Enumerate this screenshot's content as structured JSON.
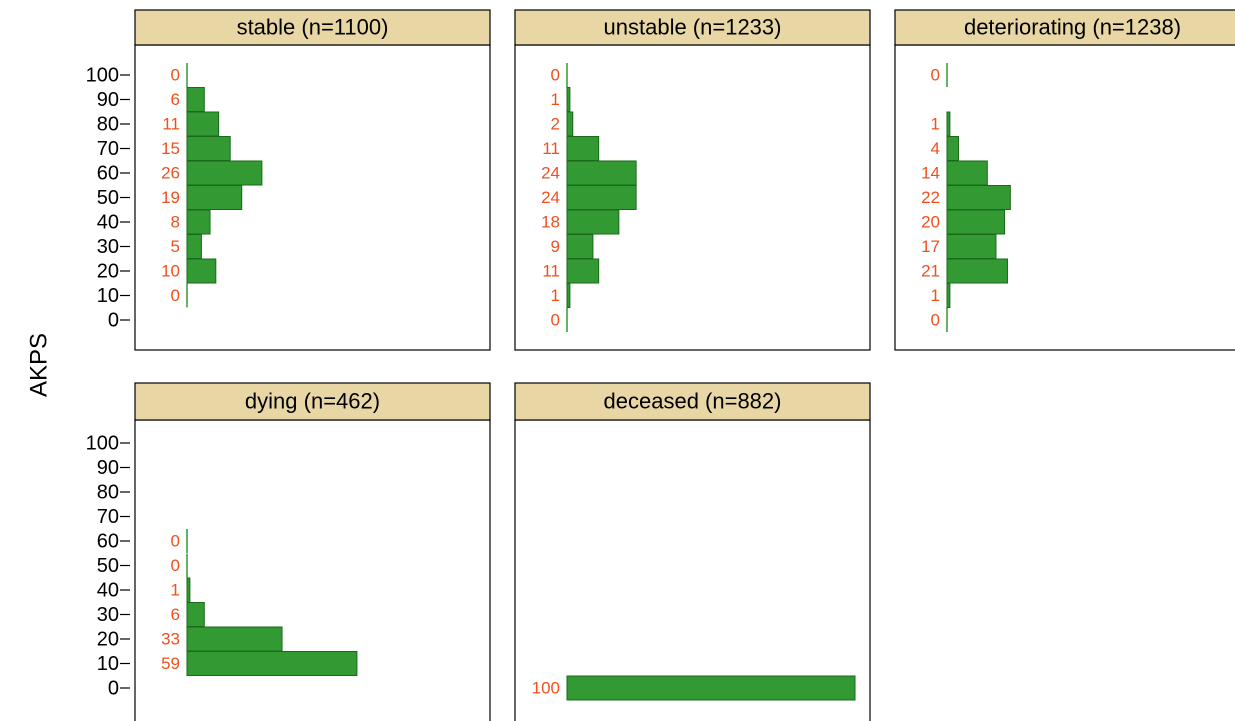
{
  "ylabel": "AKPS",
  "chart_data": [
    {
      "type": "hbar",
      "title": "stable (n=1100)",
      "color": "#339933",
      "label_color": "#f0501e",
      "categories": [
        100,
        90,
        80,
        70,
        60,
        50,
        40,
        30,
        20,
        10
      ],
      "values": [
        0,
        6,
        11,
        15,
        26,
        19,
        8,
        5,
        10,
        0
      ],
      "xlim": [
        0,
        100
      ],
      "ylim": [
        0,
        100
      ],
      "yticks": [
        0,
        10,
        20,
        30,
        40,
        50,
        60,
        70,
        80,
        90,
        100
      ]
    },
    {
      "type": "hbar",
      "title": "unstable (n=1233)",
      "color": "#339933",
      "label_color": "#f0501e",
      "categories": [
        100,
        90,
        80,
        70,
        60,
        50,
        40,
        30,
        20,
        10,
        0
      ],
      "values": [
        0,
        1,
        2,
        11,
        24,
        24,
        18,
        9,
        11,
        1,
        0
      ],
      "xlim": [
        0,
        100
      ],
      "ylim": [
        0,
        100
      ]
    },
    {
      "type": "hbar",
      "title": "deteriorating (n=1238)",
      "color": "#339933",
      "label_color": "#f0501e",
      "categories": [
        100,
        80,
        70,
        60,
        50,
        40,
        30,
        20,
        10,
        0
      ],
      "values": [
        0,
        1,
        4,
        14,
        22,
        20,
        17,
        21,
        1,
        0
      ],
      "xlim": [
        0,
        100
      ],
      "ylim": [
        0,
        100
      ]
    },
    {
      "type": "hbar",
      "title": "dying (n=462)",
      "color": "#339933",
      "label_color": "#f0501e",
      "categories": [
        60,
        50,
        40,
        30,
        20,
        10
      ],
      "values": [
        0,
        0,
        1,
        6,
        33,
        59
      ],
      "xlim": [
        0,
        100
      ],
      "ylim": [
        0,
        100
      ],
      "yticks": [
        0,
        10,
        20,
        30,
        40,
        50,
        60,
        70,
        80,
        90,
        100
      ]
    },
    {
      "type": "hbar",
      "title": "deceased (n=882)",
      "color": "#339933",
      "label_color": "#f0501e",
      "categories": [
        0
      ],
      "values": [
        100
      ],
      "xlim": [
        0,
        100
      ],
      "ylim": [
        0,
        100
      ]
    }
  ]
}
